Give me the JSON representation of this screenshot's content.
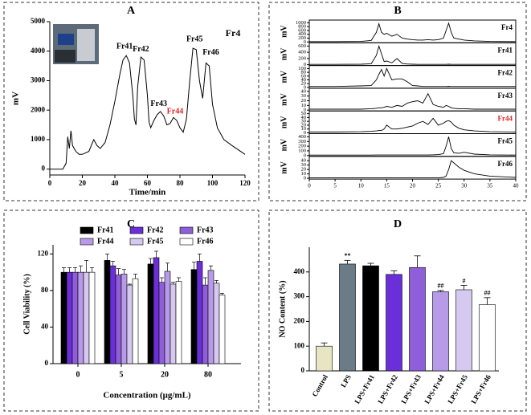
{
  "chart_data": [
    {
      "type": "line",
      "label": "A",
      "title": "Fr4",
      "xlabel": "Time/min",
      "ylabel": "mV",
      "color": "#000000",
      "x": [
        0,
        8,
        10,
        11,
        12,
        13,
        14,
        16,
        18,
        20,
        24,
        27,
        29,
        31,
        34,
        37,
        40,
        43,
        45,
        47,
        49,
        51,
        52,
        53,
        54,
        56,
        58,
        60,
        61,
        62,
        64,
        66,
        68,
        70,
        72,
        74,
        76,
        78,
        80,
        82,
        84,
        86,
        88,
        90,
        92,
        94,
        96,
        98,
        100,
        103,
        107,
        112,
        120
      ],
      "values": [
        0,
        0,
        200,
        1100,
        700,
        1300,
        800,
        600,
        500,
        500,
        600,
        1000,
        800,
        700,
        900,
        1500,
        2300,
        3200,
        3700,
        3850,
        3600,
        2500,
        1700,
        1500,
        2800,
        3800,
        3700,
        2500,
        1600,
        1400,
        1650,
        1850,
        1950,
        1800,
        1500,
        1550,
        1750,
        1650,
        1400,
        1250,
        1700,
        3000,
        4100,
        4050,
        3000,
        2400,
        3600,
        3500,
        2200,
        1400,
        1000,
        800,
        500
      ],
      "xlim": [
        0,
        120
      ],
      "xticks": [
        0,
        20,
        40,
        60,
        80,
        100,
        120
      ],
      "ylim": [
        -200,
        5000
      ],
      "yticks": [
        0,
        1000,
        2000,
        3000,
        4000,
        5000
      ],
      "annotations": [
        {
          "text": "Fr41",
          "x": 46,
          "y": 4150,
          "color": "#000000"
        },
        {
          "text": "Fr42",
          "x": 56,
          "y": 4050,
          "color": "#000000"
        },
        {
          "text": "Fr43",
          "x": 67,
          "y": 2200,
          "color": "#000000"
        },
        {
          "text": "Fr44",
          "x": 77,
          "y": 1950,
          "color": "#e0242b"
        },
        {
          "text": "Fr45",
          "x": 89,
          "y": 4400,
          "color": "#000000"
        },
        {
          "text": "Fr46",
          "x": 99,
          "y": 3950,
          "color": "#000000"
        }
      ]
    },
    {
      "type": "stacked-line",
      "label": "B",
      "ylabel": "mV",
      "color": "#000000",
      "x": [
        0,
        5,
        10,
        12,
        13,
        13.5,
        14,
        14.5,
        15,
        16,
        17,
        18,
        19,
        20,
        21,
        22,
        23,
        24,
        25,
        26,
        26.5,
        27,
        27.5,
        28,
        29,
        30,
        32,
        35,
        40
      ],
      "xlim": [
        0,
        40
      ],
      "xticks": [
        0,
        5,
        10,
        15,
        20,
        25,
        30,
        35,
        40
      ],
      "panels": [
        {
          "name": "Fr4",
          "name_color": "#000000",
          "ylim": [
            0,
            1100
          ],
          "yticks": [
            0,
            200,
            400,
            600,
            800,
            1000
          ],
          "values": [
            20,
            20,
            30,
            80,
            500,
            950,
            500,
            400,
            450,
            300,
            400,
            200,
            150,
            120,
            100,
            100,
            120,
            100,
            120,
            200,
            600,
            980,
            500,
            200,
            150,
            100,
            60,
            30,
            20
          ]
        },
        {
          "name": "Fr41",
          "name_color": "#000000",
          "ylim": [
            0,
            680
          ],
          "yticks": [
            0,
            200,
            400,
            600
          ],
          "values": [
            10,
            10,
            15,
            30,
            300,
            600,
            350,
            100,
            120,
            60,
            200,
            40,
            20,
            15,
            10,
            10,
            10,
            10,
            10,
            10,
            10,
            15,
            10,
            10,
            10,
            10,
            10,
            10,
            10
          ]
        },
        {
          "name": "Fr42",
          "name_color": "#000000",
          "ylim": [
            0,
            112
          ],
          "yticks": [
            0,
            20,
            40,
            60,
            80,
            100
          ],
          "values": [
            5,
            5,
            8,
            10,
            40,
            70,
            95,
            60,
            100,
            40,
            45,
            45,
            30,
            10,
            8,
            5,
            5,
            5,
            5,
            5,
            5,
            6,
            5,
            5,
            5,
            5,
            5,
            5,
            5
          ]
        },
        {
          "name": "Fr43",
          "name_color": "#000000",
          "ylim": [
            0,
            45
          ],
          "yticks": [
            0,
            10,
            20,
            30,
            40
          ],
          "values": [
            2,
            2,
            2,
            3,
            4,
            5,
            5,
            6,
            8,
            6,
            10,
            8,
            15,
            18,
            20,
            15,
            35,
            12,
            8,
            6,
            10,
            8,
            5,
            4,
            3,
            3,
            2,
            2,
            2
          ]
        },
        {
          "name": "Fr44",
          "name_color": "#e0242b",
          "ylim": [
            0,
            55
          ],
          "yticks": [
            0,
            10,
            20,
            30,
            40,
            50
          ],
          "values": [
            2,
            2,
            3,
            4,
            5,
            6,
            6,
            10,
            20,
            10,
            10,
            12,
            15,
            18,
            25,
            30,
            22,
            38,
            20,
            25,
            30,
            32,
            28,
            20,
            12,
            8,
            5,
            3,
            2
          ]
        },
        {
          "name": "Fr45",
          "name_color": "#000000",
          "ylim": [
            0,
            450
          ],
          "yticks": [
            0,
            100,
            200,
            300,
            400
          ],
          "values": [
            10,
            10,
            10,
            10,
            12,
            12,
            12,
            12,
            12,
            12,
            12,
            12,
            12,
            12,
            12,
            12,
            12,
            15,
            20,
            40,
            200,
            400,
            150,
            60,
            50,
            70,
            30,
            15,
            10
          ]
        },
        {
          "name": "Fr46",
          "name_color": "#000000",
          "ylim": [
            0,
            48
          ],
          "yticks": [
            0,
            10,
            20,
            30,
            40
          ],
          "values": [
            1,
            1,
            1,
            1,
            1,
            1,
            1,
            1,
            1,
            1,
            1,
            1,
            1,
            1,
            1,
            1,
            1,
            1,
            1,
            2,
            5,
            20,
            40,
            35,
            25,
            18,
            10,
            5,
            2
          ]
        }
      ]
    },
    {
      "type": "grouped-bar",
      "label": "C",
      "xlabel": "Concentration (μg/mL)",
      "ylabel": "Cell Viability (%)",
      "categories": [
        "0",
        "5",
        "20",
        "80"
      ],
      "ylim": [
        0,
        130
      ],
      "yticks": [
        0,
        40,
        80,
        120
      ],
      "series": [
        {
          "name": "Fr41",
          "color": "#000000",
          "values": [
            100,
            113,
            109,
            103
          ],
          "errors": [
            5,
            7,
            6,
            8
          ]
        },
        {
          "name": "Fr42",
          "color": "#6a2fd8",
          "values": [
            100,
            107,
            116,
            112
          ],
          "errors": [
            5,
            5,
            7,
            8
          ]
        },
        {
          "name": "Fr43",
          "color": "#8e5fd8",
          "values": [
            100,
            97,
            89,
            86
          ],
          "errors": [
            5,
            7,
            5,
            8
          ]
        },
        {
          "name": "Fr44",
          "color": "#b79ae8",
          "values": [
            100,
            98,
            101,
            102
          ],
          "errors": [
            7,
            5,
            9,
            5
          ]
        },
        {
          "name": "Fr45",
          "color": "#d6c9f0",
          "values": [
            100,
            86,
            87,
            88
          ],
          "errors": [
            13,
            1,
            2,
            3
          ]
        },
        {
          "name": "Fr46",
          "color": "#ffffff",
          "values": [
            100,
            93,
            90,
            75
          ],
          "errors": [
            5,
            5,
            4,
            2
          ]
        }
      ]
    },
    {
      "type": "bar",
      "label": "D",
      "ylabel": "NO Content (%)",
      "categories": [
        "Control",
        "LPS",
        "LPS+Fr41",
        "LPS+Fr42",
        "LPS+Fr43",
        "LPS+Fr44",
        "LPS+Fr45",
        "LPS+Fr46"
      ],
      "values": [
        100,
        432,
        425,
        390,
        418,
        320,
        328,
        268
      ],
      "errors": [
        13,
        15,
        10,
        15,
        47,
        5,
        18,
        28
      ],
      "colors": [
        "#e8e5c4",
        "#6b7c86",
        "#000000",
        "#6a2fd8",
        "#8e5fd8",
        "#b79ae8",
        "#d6c9f0",
        "#ffffff"
      ],
      "significance": [
        null,
        "**",
        null,
        null,
        null,
        "##",
        "#",
        "##"
      ],
      "ylim": [
        0,
        500
      ],
      "yticks": [
        0,
        100,
        200,
        300,
        400
      ]
    }
  ]
}
